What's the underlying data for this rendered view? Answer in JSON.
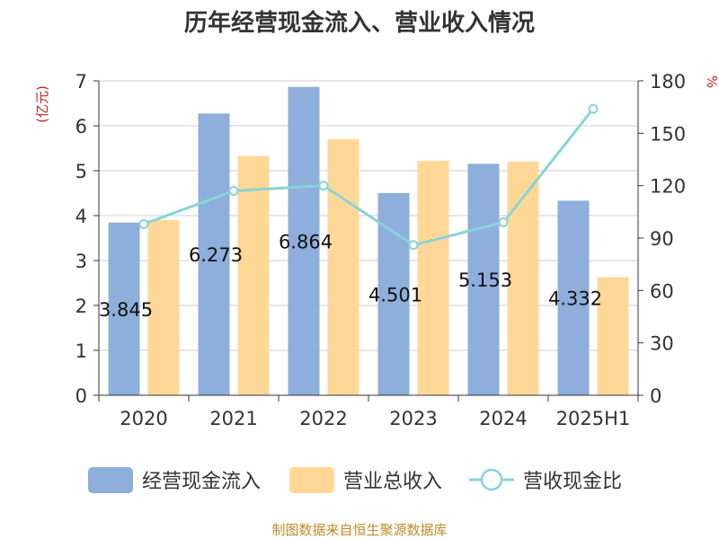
{
  "chart_data": {
    "type": "bar",
    "title": "历年经营现金流入、营业收入情况",
    "categories": [
      "2020",
      "2021",
      "2022",
      "2023",
      "2024",
      "2025H1"
    ],
    "series": [
      {
        "name": "经营现金流入",
        "type": "bar",
        "axis": "left",
        "color": "#8eaedb",
        "values": [
          3.845,
          6.273,
          6.864,
          4.501,
          5.153,
          4.332
        ],
        "data_labels": [
          "3.845",
          "6.273",
          "6.864",
          "4.501",
          "5.153",
          "4.332"
        ]
      },
      {
        "name": "营业总收入",
        "type": "bar",
        "axis": "left",
        "color": "#ffd898",
        "values": [
          3.9,
          5.33,
          5.7,
          5.22,
          5.2,
          2.63
        ]
      },
      {
        "name": "营收现金比",
        "type": "line",
        "axis": "right",
        "color": "#89d3d8",
        "values": [
          98,
          117,
          120,
          86,
          99,
          164
        ]
      }
    ],
    "y_left": {
      "unit": "(亿元)",
      "ylim": [
        0,
        7
      ],
      "ticks": [
        "0",
        "1",
        "2",
        "3",
        "4",
        "5",
        "6",
        "7"
      ]
    },
    "y_right": {
      "unit": "%",
      "ylim": [
        0,
        180
      ],
      "ticks": [
        "0",
        "30",
        "60",
        "90",
        "120",
        "150",
        "180"
      ]
    },
    "grid": true,
    "legend_position": "bottom"
  },
  "source": "制图数据来自恒生聚源数据库"
}
